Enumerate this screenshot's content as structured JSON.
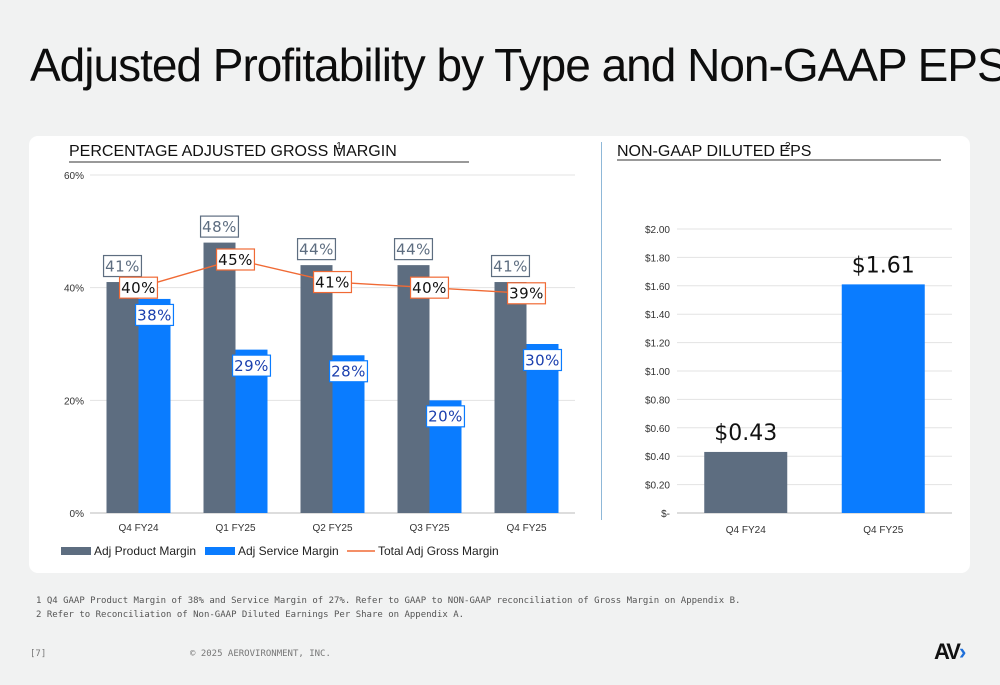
{
  "title": "Adjusted Profitability by Type and Non-GAAP EPS",
  "colors": {
    "product": "#5d6d80",
    "service": "#0a7cff",
    "total": "#f06a35",
    "axis_text": "#333333",
    "grid": "#e3e3e3"
  },
  "chart_data": [
    {
      "type": "bar",
      "title": "PERCENTAGE ADJUSTED GROSS MARGIN",
      "title_superscript": "1",
      "categories": [
        "Q4 FY24",
        "Q1 FY25",
        "Q2 FY25",
        "Q3 FY25",
        "Q4 FY25"
      ],
      "y_ticks": [
        "0%",
        "20%",
        "40%",
        "60%"
      ],
      "ylim": [
        0,
        60
      ],
      "grid": true,
      "legend_position": "bottom-left",
      "series": [
        {
          "name": "Adj Product Margin",
          "kind": "bar",
          "color": "#5d6d80",
          "values": [
            41,
            48,
            44,
            44,
            41
          ],
          "labels": [
            "41%",
            "48%",
            "44%",
            "44%",
            "41%"
          ]
        },
        {
          "name": "Adj Service Margin",
          "kind": "bar",
          "color": "#0a7cff",
          "values": [
            38,
            29,
            28,
            20,
            30
          ],
          "labels": [
            "38%",
            "29%",
            "28%",
            "20%",
            "30%"
          ]
        },
        {
          "name": "Total Adj Gross Margin",
          "kind": "line",
          "color": "#f06a35",
          "values": [
            40,
            45,
            41,
            40,
            39
          ],
          "labels": [
            "40%",
            "45%",
            "41%",
            "40%",
            "39%"
          ]
        }
      ]
    },
    {
      "type": "bar",
      "title": "NON-GAAP DILUTED EPS",
      "title_superscript": "2",
      "categories": [
        "Q4 FY24",
        "Q4 FY25"
      ],
      "values": [
        0.43,
        1.61
      ],
      "labels": [
        "$0.43",
        "$1.61"
      ],
      "colors": [
        "#5d6d80",
        "#0a7cff"
      ],
      "y_ticks": [
        "$-",
        "$0.20",
        "$0.40",
        "$0.60",
        "$0.80",
        "$1.00",
        "$1.20",
        "$1.40",
        "$1.60",
        "$1.80",
        "$2.00"
      ],
      "ylim": [
        0,
        2.0
      ],
      "grid": true
    }
  ],
  "footnotes": [
    "1 Q4 GAAP Product Margin of 38% and Service Margin of 27%. Refer to GAAP to NON-GAAP reconciliation of Gross Margin on Appendix B.",
    "2 Refer to Reconciliation of Non-GAAP Diluted Earnings Per Share on Appendix A."
  ],
  "footer": {
    "page": "[7]",
    "copyright": "© 2025 AEROVIRONMENT, INC.",
    "logo": "AV"
  }
}
